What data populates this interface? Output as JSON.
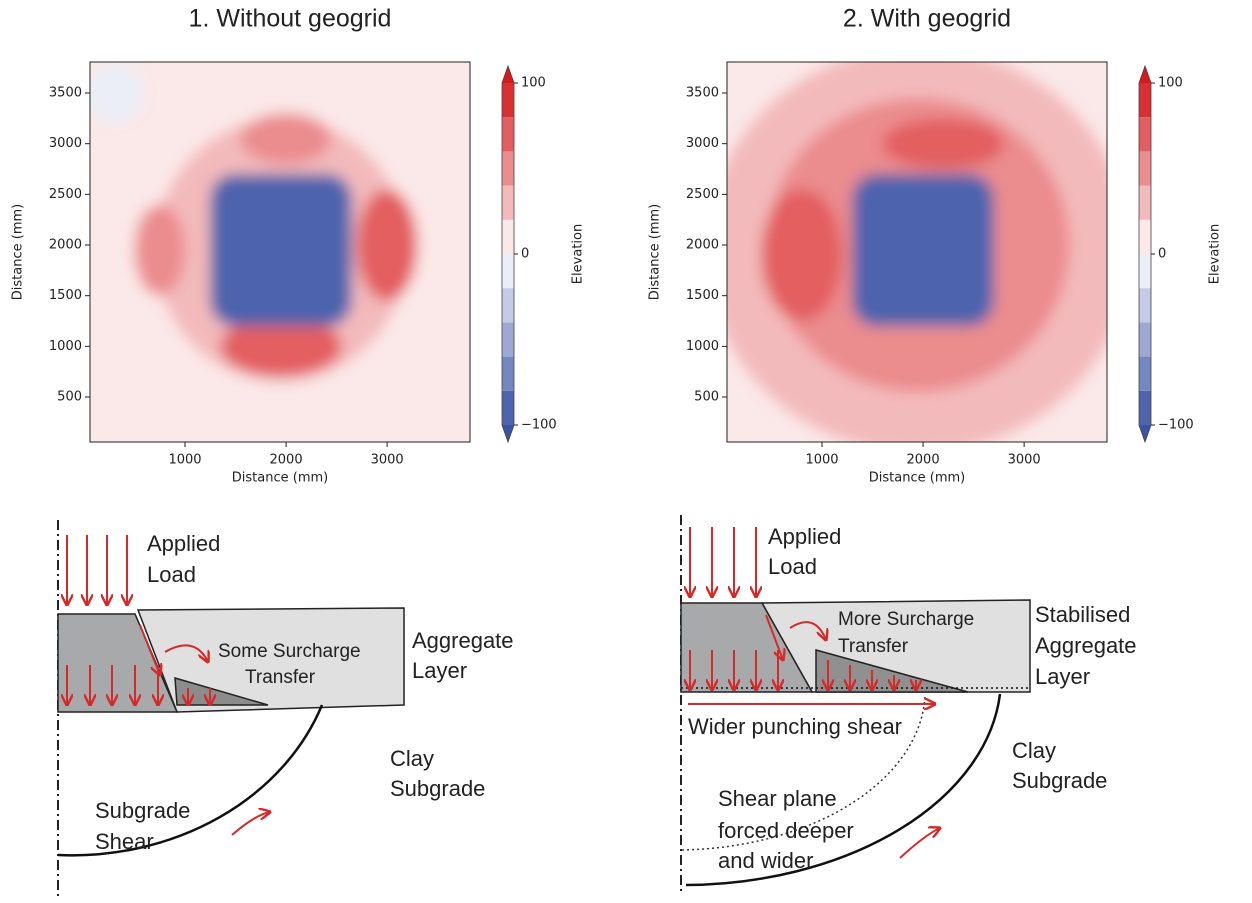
{
  "chart_data": [
    {
      "type": "contour",
      "title": "1. Without geogrid",
      "xlabel": "Distance (mm)",
      "ylabel": "Distance (mm)",
      "xlim": [
        60,
        3820
      ],
      "ylim": [
        56,
        3806
      ],
      "xticks": [
        1000,
        2000,
        3000
      ],
      "yticks": [
        500,
        1000,
        1500,
        2000,
        2500,
        3000,
        3500
      ],
      "background": 2,
      "regions": [
        {
          "shape": "ellipse",
          "x": 300,
          "y": 3500,
          "rx": 300,
          "ry": 300,
          "value": -10
        },
        {
          "shape": "ellipse",
          "x": 1950,
          "y": 1950,
          "rx": 1750,
          "ry": 1750,
          "value": 15
        },
        {
          "shape": "ellipse",
          "x": 1950,
          "y": 1950,
          "rx": 1250,
          "ry": 1300,
          "value": 30
        },
        {
          "shape": "ellipse",
          "x": 2000,
          "y": 3050,
          "rx": 450,
          "ry": 250,
          "value": 55
        },
        {
          "shape": "ellipse",
          "x": 1950,
          "y": 1000,
          "rx": 600,
          "ry": 300,
          "value": 60
        },
        {
          "shape": "ellipse",
          "x": 750,
          "y": 1950,
          "rx": 250,
          "ry": 450,
          "value": 50
        },
        {
          "shape": "ellipse",
          "x": 3000,
          "y": 2000,
          "rx": 300,
          "ry": 550,
          "value": 60
        },
        {
          "shape": "rect",
          "x": 1950,
          "y": 1950,
          "rx": 700,
          "ry": 750,
          "value": -100
        }
      ],
      "colorbar": {
        "label": "Elevation",
        "clim": [
          -100,
          100
        ],
        "levels": [
          -100,
          -80,
          -60,
          -40,
          -20,
          0,
          20,
          40,
          60,
          80,
          100
        ],
        "ticks": [
          {
            "value": -100,
            "label": "−100"
          },
          0,
          100
        ],
        "low_color": "#3a53a4",
        "mid_color": "#ffffff",
        "high_color": "#d7191c"
      }
    },
    {
      "type": "contour",
      "title": "2. With geogrid",
      "xlabel": "Distance (mm)",
      "ylabel": "Distance (mm)",
      "xlim": [
        60,
        3820
      ],
      "ylim": [
        56,
        3806
      ],
      "xticks": [
        1000,
        2000,
        3000
      ],
      "yticks": [
        500,
        1000,
        1500,
        2000,
        2500,
        3000,
        3500
      ],
      "background": 10,
      "regions": [
        {
          "shape": "ellipse",
          "x": 1950,
          "y": 1950,
          "rx": 2100,
          "ry": 2000,
          "value": 30
        },
        {
          "shape": "ellipse",
          "x": 1950,
          "y": 2000,
          "rx": 1500,
          "ry": 1450,
          "value": 45
        },
        {
          "shape": "ellipse",
          "x": 2200,
          "y": 3000,
          "rx": 600,
          "ry": 250,
          "value": 65
        },
        {
          "shape": "ellipse",
          "x": 800,
          "y": 1900,
          "rx": 400,
          "ry": 650,
          "value": 60
        },
        {
          "shape": "ellipse",
          "x": 3000,
          "y": 2000,
          "rx": 300,
          "ry": 500,
          "value": 55
        },
        {
          "shape": "ellipse",
          "x": 1900,
          "y": 1100,
          "rx": 600,
          "ry": 250,
          "value": 50
        },
        {
          "shape": "rect",
          "x": 2000,
          "y": 1950,
          "rx": 700,
          "ry": 750,
          "value": -100
        }
      ],
      "colorbar": {
        "label": "Elevation",
        "clim": [
          -100,
          100
        ],
        "levels": [
          -100,
          -80,
          -60,
          -40,
          -20,
          0,
          20,
          40,
          60,
          80,
          100
        ],
        "ticks": [
          {
            "value": -100,
            "label": "−100"
          },
          0,
          100
        ],
        "low_color": "#3a53a4",
        "mid_color": "#ffffff",
        "high_color": "#d7191c"
      }
    }
  ],
  "diagrams": [
    {
      "load": [
        "Applied",
        "Load"
      ],
      "transfer": [
        "Some Surcharge",
        "Transfer"
      ],
      "layer": [
        "Aggregate",
        "Layer"
      ],
      "subgrade": [
        "Clay",
        "Subgrade"
      ],
      "shear": [
        "Subgrade",
        "Shear"
      ]
    },
    {
      "load": [
        "Applied",
        "Load"
      ],
      "transfer": [
        "More Surcharge",
        "Transfer"
      ],
      "layer": [
        "Stabilised",
        "Aggregate",
        "Layer"
      ],
      "punching": "Wider punching shear",
      "subgrade": [
        "Clay",
        "Subgrade"
      ],
      "shear": [
        "Shear plane",
        "forced deeper",
        "and wider"
      ]
    }
  ]
}
